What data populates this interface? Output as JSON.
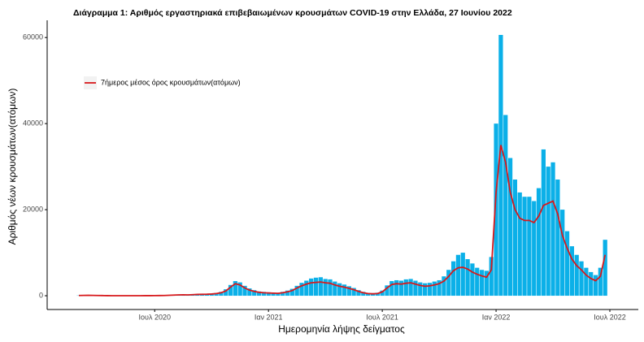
{
  "chart_data": {
    "type": "bar-line",
    "title": "Διάγραμμα 1: Αριθμός εργαστηριακά επιβεβαιωμένων κρουσμάτων COVID-19 στην Ελλάδα, 27 Ιουνίου 2022",
    "xlabel": "Ημερομηνία λήψης δείγματος",
    "ylabel": "Αριθμός νέων κρουσμάτων(ατόμων)",
    "x": [
      2.0,
      2.25,
      2.5,
      2.75,
      3.0,
      3.25,
      3.5,
      3.75,
      4.0,
      4.25,
      4.5,
      4.75,
      5.0,
      5.25,
      5.5,
      5.75,
      6.0,
      6.25,
      6.5,
      6.75,
      7.0,
      7.25,
      7.5,
      7.75,
      8.0,
      8.25,
      8.5,
      8.75,
      9.0,
      9.25,
      9.5,
      9.75,
      10.0,
      10.25,
      10.5,
      10.75,
      11.0,
      11.25,
      11.5,
      11.75,
      12.0,
      12.25,
      12.5,
      12.75,
      13.0,
      13.25,
      13.5,
      13.75,
      14.0,
      14.25,
      14.5,
      14.75,
      15.0,
      15.25,
      15.5,
      15.75,
      16.0,
      16.25,
      16.5,
      16.75,
      17.0,
      17.25,
      17.5,
      17.75,
      18.0,
      18.25,
      18.5,
      18.75,
      19.0,
      19.25,
      19.5,
      19.75,
      20.0,
      20.25,
      20.5,
      20.75,
      21.0,
      21.25,
      21.5,
      21.75,
      22.0,
      22.25,
      22.5,
      22.75,
      23.0,
      23.25,
      23.5,
      23.75,
      24.0,
      24.25,
      24.5,
      24.75,
      25.0,
      25.25,
      25.5,
      25.75,
      26.0,
      26.25,
      26.5,
      26.75,
      27.0,
      27.25,
      27.5,
      27.75,
      28.0,
      28.25,
      28.5,
      28.75,
      29.0,
      29.25,
      29.5,
      29.75
    ],
    "bars": {
      "color": "#0bb0e8",
      "values": [
        60,
        100,
        130,
        100,
        80,
        50,
        30,
        20,
        15,
        15,
        15,
        15,
        20,
        20,
        25,
        30,
        40,
        50,
        80,
        130,
        200,
        260,
        300,
        260,
        320,
        380,
        420,
        450,
        520,
        650,
        900,
        1500,
        2500,
        3400,
        3100,
        2300,
        1700,
        1300,
        1000,
        900,
        800,
        750,
        700,
        900,
        1200,
        1600,
        2300,
        3000,
        3500,
        4000,
        4200,
        4300,
        3900,
        3800,
        3300,
        2900,
        2600,
        2200,
        1800,
        1300,
        900,
        650,
        600,
        700,
        1200,
        2400,
        3400,
        3600,
        3500,
        3800,
        3900,
        3500,
        3100,
        2900,
        3000,
        3300,
        3600,
        4500,
        6000,
        8000,
        9500,
        10000,
        8500,
        7500,
        6500,
        6000,
        5800,
        9000,
        40000,
        60600,
        42000,
        32000,
        27000,
        24000,
        23000,
        23000,
        22000,
        25000,
        34000,
        30000,
        31000,
        27000,
        20000,
        15000,
        11500,
        9500,
        8000,
        6500,
        5500,
        4800,
        6500,
        13000
      ]
    },
    "series": [
      {
        "name": "7ήμερος μέσος όρος κρουσμάτων(ατόμων)",
        "color": "#d7191c",
        "values": [
          50,
          80,
          100,
          80,
          60,
          40,
          20,
          15,
          10,
          10,
          10,
          10,
          15,
          15,
          20,
          25,
          30,
          40,
          60,
          100,
          150,
          200,
          220,
          200,
          250,
          300,
          330,
          350,
          400,
          500,
          700,
          1100,
          2000,
          2800,
          2500,
          1800,
          1300,
          1000,
          800,
          700,
          650,
          600,
          550,
          700,
          900,
          1200,
          1800,
          2300,
          2700,
          3000,
          3100,
          3200,
          3000,
          2900,
          2500,
          2200,
          2000,
          1700,
          1400,
          1000,
          700,
          500,
          450,
          500,
          900,
          1800,
          2600,
          2800,
          2700,
          2900,
          3000,
          2700,
          2400,
          2200,
          2300,
          2500,
          2800,
          3400,
          4500,
          5800,
          6500,
          6600,
          6200,
          5500,
          5000,
          4600,
          4300,
          6000,
          24000,
          35000,
          31000,
          24000,
          20000,
          18000,
          17500,
          17500,
          17000,
          18500,
          21000,
          21500,
          22000,
          19000,
          14000,
          11000,
          8500,
          7000,
          6000,
          4800,
          4000,
          3500,
          4500,
          9500
        ]
      }
    ],
    "xlim": [
      0.33,
      31.5
    ],
    "xticks": [
      {
        "value": 6,
        "label": "Ιουλ 2020"
      },
      {
        "value": 12,
        "label": "Ιαν 2021"
      },
      {
        "value": 18,
        "label": "Ιουλ 2021"
      },
      {
        "value": 24,
        "label": "Ιαν 2022"
      },
      {
        "value": 30,
        "label": "Ιουλ 2022"
      }
    ],
    "ylim": [
      -3200,
      64000
    ],
    "yticks": [
      0,
      20000,
      40000,
      60000
    ],
    "legend": "top-left"
  }
}
